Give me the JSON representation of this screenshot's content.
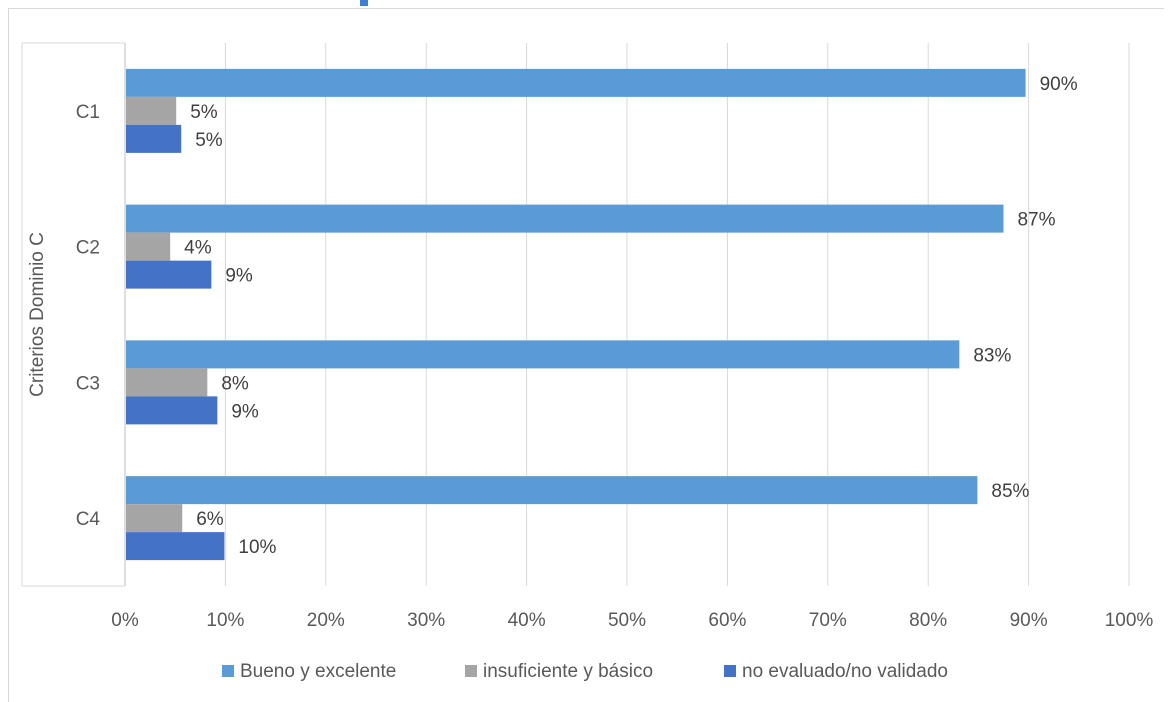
{
  "chart_data": {
    "type": "bar",
    "orientation": "horizontal",
    "title": "",
    "xlabel": "",
    "ylabel": "Criterios Dominio C",
    "categories": [
      "C1",
      "C2",
      "C3",
      "C4"
    ],
    "series": [
      {
        "name": "Bueno y excelente",
        "color": "#5b9bd5",
        "values": [
          0.896,
          0.874,
          0.83,
          0.848
        ],
        "labels": [
          "90%",
          "87%",
          "83%",
          "85%"
        ]
      },
      {
        "name": "insuficiente y básico",
        "color": "#a5a5a5",
        "values": [
          0.05,
          0.044,
          0.081,
          0.056
        ],
        "labels": [
          "5%",
          "4%",
          "8%",
          "6%"
        ]
      },
      {
        "name": "no evaluado/no validado",
        "color": "#4472c4",
        "values": [
          0.055,
          0.085,
          0.091,
          0.098
        ],
        "labels": [
          "5%",
          "9%",
          "9%",
          "10%"
        ]
      }
    ],
    "xlim": [
      0,
      1
    ],
    "xticks": [
      "0%",
      "10%",
      "20%",
      "30%",
      "40%",
      "50%",
      "60%",
      "70%",
      "80%",
      "90%",
      "100%"
    ],
    "grid": "vertical",
    "legend": "bottom"
  }
}
